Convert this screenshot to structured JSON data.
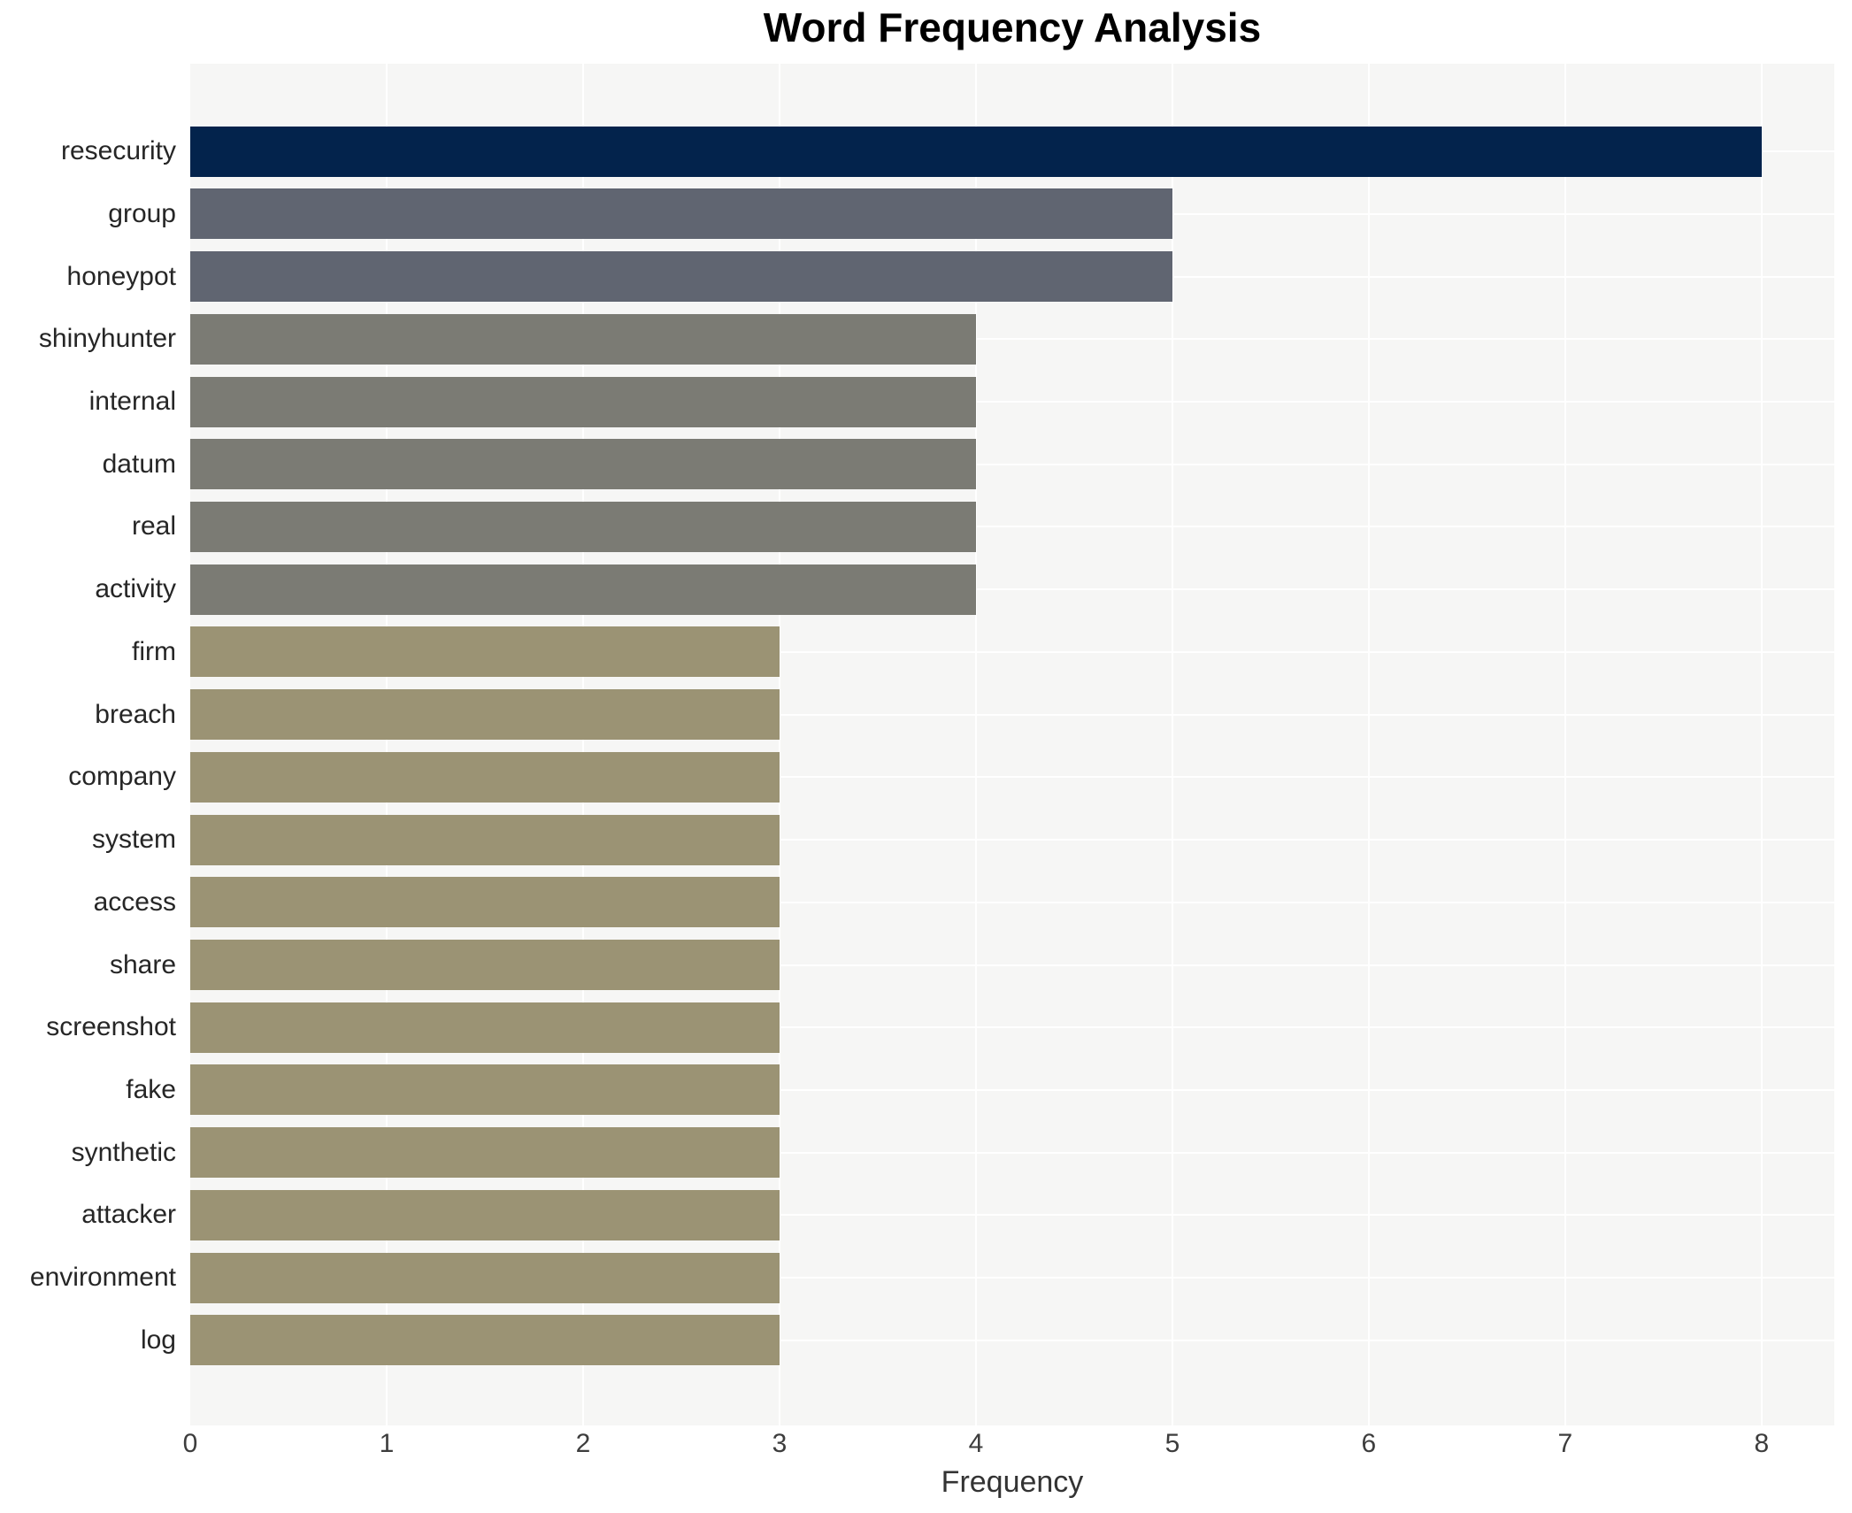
{
  "title": "Word Frequency Analysis",
  "chart_data": {
    "type": "bar",
    "orientation": "horizontal",
    "title": "Word Frequency Analysis",
    "xlabel": "Frequency",
    "ylabel": "",
    "categories": [
      "resecurity",
      "group",
      "honeypot",
      "shinyhunter",
      "internal",
      "datum",
      "real",
      "activity",
      "firm",
      "breach",
      "company",
      "system",
      "access",
      "share",
      "screenshot",
      "fake",
      "synthetic",
      "attacker",
      "environment",
      "log"
    ],
    "values": [
      8,
      5,
      5,
      4,
      4,
      4,
      4,
      4,
      3,
      3,
      3,
      3,
      3,
      3,
      3,
      3,
      3,
      3,
      3,
      3
    ],
    "bar_colors": [
      "#03234c",
      "#606571",
      "#606571",
      "#7b7b74",
      "#7b7b74",
      "#7b7b74",
      "#7b7b74",
      "#7b7b74",
      "#9b9374",
      "#9b9374",
      "#9b9374",
      "#9b9374",
      "#9b9374",
      "#9b9374",
      "#9b9374",
      "#9b9374",
      "#9b9374",
      "#9b9374",
      "#9b9374",
      "#9b9374"
    ],
    "xticks": [
      0,
      1,
      2,
      3,
      4,
      5,
      6,
      7,
      8
    ],
    "xlim": [
      0,
      8.37
    ],
    "grid": true,
    "legend": false,
    "plot_background": "#f6f6f5",
    "gridline_color": "#ffffff",
    "label_color": "#262626",
    "tick_color": "#3d3d3d",
    "title_color": "#000000"
  }
}
